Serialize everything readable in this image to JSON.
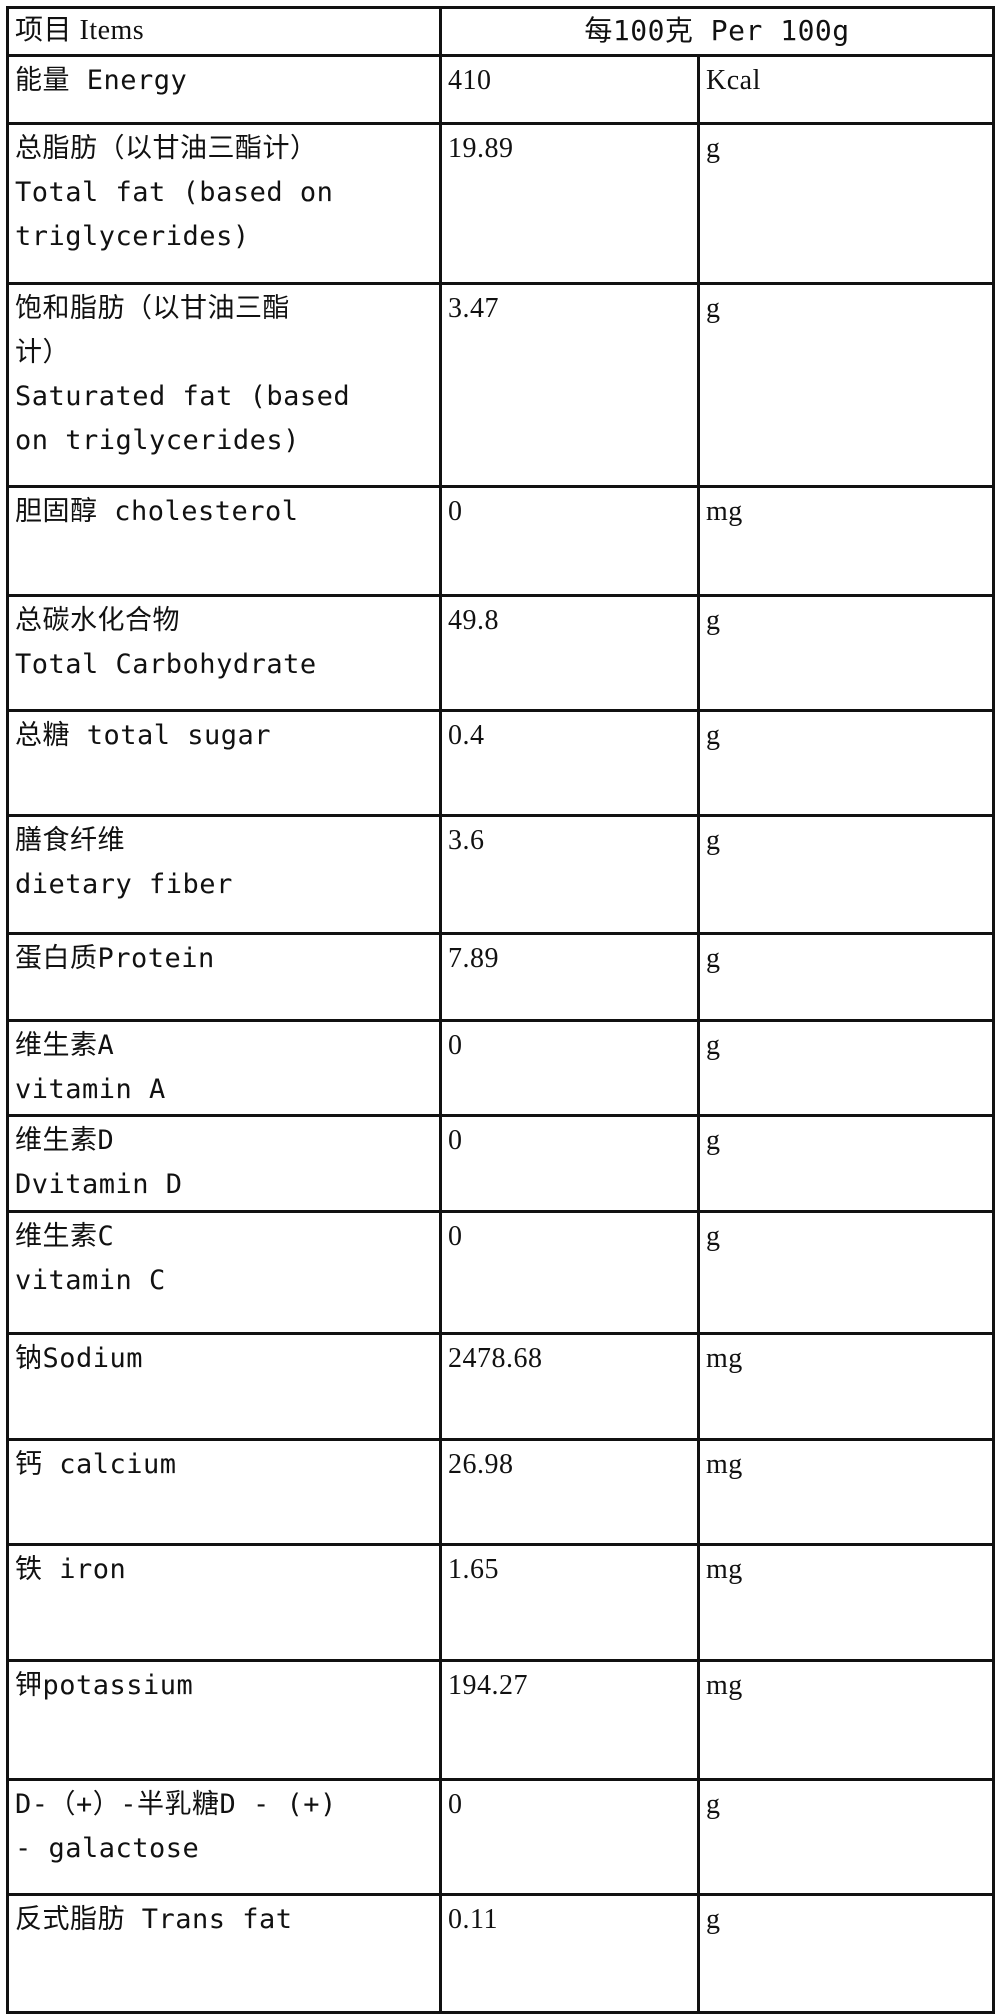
{
  "header": {
    "items": "项目 Items",
    "per": "每100克  Per 100g"
  },
  "rows": [
    {
      "name": [
        "能量 Energy"
      ],
      "value": "410",
      "unit": "Kcal"
    },
    {
      "name": [
        "总脂肪（以甘油三酯计）",
        "Total fat (based on",
        "triglycerides)"
      ],
      "value": "19.89",
      "unit": "g"
    },
    {
      "name": [
        "饱和脂肪（以甘油三酯",
        "计）",
        "Saturated fat (based",
        "on triglycerides)"
      ],
      "value": "3.47",
      "unit": "g"
    },
    {
      "name": [
        "胆固醇 cholesterol"
      ],
      "value": "0",
      "unit": "mg"
    },
    {
      "name": [
        "总碳水化合物",
        "Total Carbohydrate"
      ],
      "value": "49.8",
      "unit": "g"
    },
    {
      "name": [
        "总糖 total sugar"
      ],
      "value": "0.4",
      "unit": "g"
    },
    {
      "name": [
        "膳食纤维",
        "dietary fiber"
      ],
      "value": "3.6",
      "unit": "g"
    },
    {
      "name": [
        "蛋白质Protein"
      ],
      "value": "7.89",
      "unit": "g"
    },
    {
      "name": [
        "维生素A",
        "vitamin A"
      ],
      "value": "0",
      "unit": "g"
    },
    {
      "name": [
        "维生素D",
        "Dvitamin D"
      ],
      "value": "0",
      "unit": "g"
    },
    {
      "name": [
        "维生素C",
        "vitamin C"
      ],
      "value": "0",
      "unit": "g"
    },
    {
      "name": [
        "钠Sodium"
      ],
      "value": "2478.68",
      "unit": "mg"
    },
    {
      "name": [
        "钙 calcium"
      ],
      "value": "26.98",
      "unit": "mg"
    },
    {
      "name": [
        "铁 iron"
      ],
      "value": "1.65",
      "unit": "mg"
    },
    {
      "name": [
        "钾potassium"
      ],
      "value": "194.27",
      "unit": "mg"
    },
    {
      "name": [
        "D-（+）-半乳糖D - (+)",
        "- galactose"
      ],
      "value": "0",
      "unit": "g"
    },
    {
      "name": [
        "反式脂肪 Trans fat"
      ],
      "value": "0.11",
      "unit": "g"
    }
  ]
}
